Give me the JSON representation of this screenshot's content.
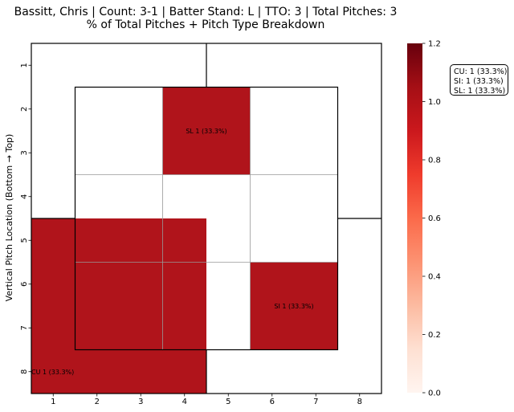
{
  "chart_data": {
    "type": "heatmap",
    "title_line1": "Bassitt, Chris | Count: 3-1 | Batter Stand: L | TTO: 3 | Total Pitches: 3",
    "title_line2": "% of Total Pitches + Pitch Type Breakdown",
    "ylabel": "Vertical Pitch Location (Bottom → Top)",
    "xlabel": "",
    "x_ticks": [
      "1",
      "2",
      "3",
      "4",
      "5",
      "6",
      "7",
      "8"
    ],
    "y_ticks": [
      "1",
      "2",
      "3",
      "4",
      "5",
      "6",
      "7",
      "8"
    ],
    "zones": [
      {
        "label": "SL 1 (33.3%)",
        "value": 1.0,
        "x_range": [
          3.5,
          5.5
        ],
        "y_range": [
          1.5,
          3.5
        ]
      },
      {
        "label": "SI 1 (33.3%)",
        "value": 1.0,
        "x_range": [
          5.5,
          7.5
        ],
        "y_range": [
          5.5,
          7.5
        ]
      },
      {
        "label": "CU 1 (33.3%)",
        "value": 1.0,
        "x_range": [
          0.5,
          4.5
        ],
        "y_range": [
          4.5,
          8.5
        ]
      }
    ],
    "colorbar": {
      "min": 0.0,
      "max": 1.2,
      "ticks": [
        "0.0",
        "0.2",
        "0.4",
        "0.6",
        "0.8",
        "1.0",
        "1.2"
      ],
      "colormap": "Reds"
    },
    "legend_lines": [
      "CU: 1 (33.3%)",
      "SI: 1 (33.3%)",
      "SL: 1 (33.3%)"
    ],
    "cell_color": "#b0141b",
    "grid": true
  }
}
